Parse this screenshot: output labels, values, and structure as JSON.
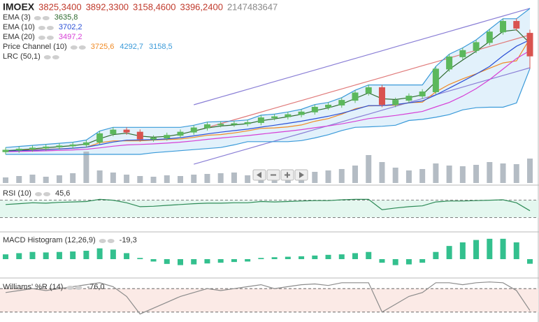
{
  "chart_data": [
    {
      "type": "candlestick",
      "title": "IMOEX",
      "open": [
        1590,
        1620,
        1640,
        1660,
        1680,
        1700,
        1720,
        1770,
        1930,
        2000,
        1960,
        1830,
        1850,
        1900,
        1960,
        2040,
        2100,
        2110,
        2120,
        2140,
        2230,
        2250,
        2290,
        2340,
        2430,
        2470,
        2560,
        2700,
        2800,
        2480,
        2560,
        2640,
        2720,
        3150,
        3380,
        3500,
        3650,
        3850,
        4050,
        3825.34
      ],
      "high": [
        1670,
        1690,
        1710,
        1730,
        1750,
        1770,
        1810,
        1980,
        2050,
        2050,
        2010,
        1900,
        1950,
        2010,
        2090,
        2150,
        2160,
        2170,
        2190,
        2280,
        2300,
        2340,
        2390,
        2480,
        2520,
        2610,
        2750,
        2850,
        2850,
        2610,
        2690,
        2770,
        3200,
        3430,
        3550,
        3700,
        3900,
        4100,
        4100,
        3892.33
      ],
      "low": [
        1540,
        1570,
        1590,
        1610,
        1630,
        1650,
        1670,
        1720,
        1880,
        1910,
        1780,
        1780,
        1800,
        1850,
        1910,
        1990,
        2050,
        2060,
        2070,
        2090,
        2180,
        2200,
        2240,
        2290,
        2380,
        2420,
        2510,
        2650,
        2430,
        2430,
        2510,
        2590,
        2670,
        3100,
        3330,
        3450,
        3600,
        3800,
        3870,
        3158.46
      ],
      "close": [
        1620,
        1640,
        1660,
        1680,
        1700,
        1720,
        1760,
        1930,
        2000,
        1960,
        1830,
        1850,
        1900,
        1960,
        2040,
        2100,
        2110,
        2120,
        2140,
        2230,
        2250,
        2290,
        2340,
        2430,
        2470,
        2560,
        2700,
        2800,
        2480,
        2560,
        2640,
        2720,
        3150,
        3380,
        3500,
        3650,
        3850,
        4050,
        3920,
        3396.24
      ],
      "value_labels": {
        "open": "3825,3400",
        "high": "3892,3300",
        "low": "3158,4600",
        "close": "3396,2400"
      },
      "volume": [
        8,
        10,
        12,
        9,
        11,
        14,
        45,
        18,
        15,
        12,
        10,
        9,
        11,
        10,
        12,
        13,
        14,
        15,
        11,
        13,
        12,
        14,
        13,
        16,
        18,
        20,
        25,
        40,
        30,
        22,
        18,
        20,
        28,
        25,
        24,
        26,
        30,
        28,
        27,
        35
      ],
      "header_volume": 2147483647,
      "up_color": "#5cb85c",
      "down_color": "#d9534f",
      "volume_color": "#b4bcc4",
      "ylim": [
        1000,
        4400
      ],
      "emas": [
        {
          "name": "EMA (3)",
          "color": "#2f6b2f",
          "last_label": "3635,8",
          "values": [
            1610,
            1625,
            1645,
            1665,
            1685,
            1705,
            1735,
            1835,
            1915,
            1940,
            1885,
            1865,
            1880,
            1920,
            1980,
            2040,
            2075,
            2095,
            2120,
            2175,
            2210,
            2250,
            2295,
            2365,
            2415,
            2490,
            2595,
            2700,
            2590,
            2575,
            2610,
            2665,
            2910,
            3145,
            3320,
            3485,
            3670,
            3860,
            3890,
            3635.8
          ]
        },
        {
          "name": "EMA (10)",
          "color": "#2a4fd6",
          "last_label": "3702,2",
          "values": [
            1600,
            1607,
            1617,
            1629,
            1642,
            1657,
            1676,
            1723,
            1774,
            1808,
            1812,
            1819,
            1832,
            1855,
            1889,
            1927,
            1960,
            1989,
            2016,
            2054,
            2090,
            2127,
            2166,
            2213,
            2260,
            2315,
            2385,
            2460,
            2462,
            2481,
            2511,
            2549,
            2660,
            2790,
            2920,
            3055,
            3200,
            3400,
            3580,
            3702.2
          ]
        },
        {
          "name": "EMA (20)",
          "color": "#d63fd6",
          "last_label": "3497,2",
          "values": [
            1590,
            1595,
            1601,
            1608,
            1616,
            1625,
            1636,
            1663,
            1694,
            1718,
            1728,
            1738,
            1752,
            1771,
            1795,
            1823,
            1849,
            1872,
            1895,
            1923,
            1950,
            1977,
            2007,
            2042,
            2077,
            2116,
            2163,
            2215,
            2244,
            2275,
            2311,
            2350,
            2436,
            2520,
            2640,
            2780,
            2950,
            3150,
            3350,
            3497.2
          ]
        }
      ],
      "price_channel": {
        "name": "Price Channel (10)",
        "fill": "#e2f1fb",
        "lines": [
          {
            "color": "#f08a24",
            "last_label": "3725,6",
            "values": [
              1605,
              1615,
              1625,
              1635,
              1645,
              1655,
              1675,
              1760,
              1795,
              1795,
              1795,
              1810,
              1820,
              1830,
              1860,
              1900,
              1915,
              1945,
              1985,
              2030,
              2040,
              2060,
              2095,
              2165,
              2215,
              2300,
              2400,
              2455,
              2460,
              2470,
              2515,
              2525,
              2720,
              2860,
              2965,
              3060,
              3165,
              3265,
              3305,
              3725.6
            ]
          },
          {
            "color": "#3a9ad9",
            "last_label": "4292,7",
            "values": [
              1670,
              1690,
              1710,
              1730,
              1750,
              1770,
              1810,
              1980,
              2050,
              2050,
              2050,
              2050,
              2050,
              2050,
              2090,
              2150,
              2160,
              2170,
              2190,
              2280,
              2300,
              2340,
              2390,
              2480,
              2520,
              2610,
              2750,
              2850,
              2850,
              2850,
              2850,
              2850,
              3200,
              3430,
              3550,
              3700,
              3900,
              4100,
              4100,
              4292.7
            ]
          },
          {
            "color": "#3a9ad9",
            "last_label": "3158,5",
            "values": [
              1540,
              1540,
              1540,
              1540,
              1540,
              1540,
              1540,
              1540,
              1540,
              1540,
              1540,
              1570,
              1590,
              1610,
              1630,
              1650,
              1670,
              1720,
              1780,
              1780,
              1780,
              1780,
              1800,
              1850,
              1910,
              1990,
              2050,
              2060,
              2070,
              2090,
              2180,
              2200,
              2240,
              2290,
              2380,
              2420,
              2430,
              2430,
              2510,
              3158.5
            ]
          }
        ]
      },
      "lrc": {
        "name": "LRC (50,1)",
        "lines": [
          {
            "color": "#8a7fd6",
            "values": [
              null,
              null,
              null,
              null,
              null,
              null,
              null,
              null,
              null,
              null,
              null,
              null,
              null,
              null,
              2476,
              2549,
              2622,
              2694,
              2767,
              2840,
              2913,
              2986,
              3058,
              3131,
              3204,
              3277,
              3350,
              3422,
              3495,
              3568,
              3641,
              3714,
              3786,
              3859,
              3932,
              4005,
              4078,
              4150,
              4223,
              4296
            ]
          },
          {
            "color": "#e07a7a",
            "values": [
              null,
              null,
              null,
              null,
              null,
              null,
              null,
              null,
              null,
              null,
              null,
              null,
              null,
              null,
              1974,
              2047,
              2120,
              2192,
              2265,
              2338,
              2411,
              2484,
              2556,
              2629,
              2702,
              2775,
              2848,
              2920,
              2993,
              3066,
              3139,
              3212,
              3284,
              3357,
              3430,
              3503,
              3576,
              3648,
              3721,
              3794
            ]
          },
          {
            "color": "#8a7fd6",
            "values": [
              null,
              null,
              null,
              null,
              null,
              null,
              null,
              null,
              null,
              null,
              null,
              null,
              null,
              null,
              1354,
              1427,
              1500,
              1572,
              1645,
              1718,
              1791,
              1864,
              1936,
              2009,
              2082,
              2155,
              2228,
              2300,
              2373,
              2446,
              2519,
              2592,
              2664,
              2737,
              2810,
              2883,
              2956,
              3028,
              3101,
              3174
            ]
          }
        ]
      }
    },
    {
      "type": "line",
      "title": "RSI (10)",
      "last_label": "45,6",
      "color": "#2e8b57",
      "values": [
        60,
        62,
        64,
        63,
        65,
        66,
        67,
        72,
        70,
        64,
        55,
        56,
        58,
        60,
        62,
        63,
        63,
        64,
        64,
        67,
        66,
        67,
        68,
        69,
        69,
        71,
        72,
        72,
        48,
        52,
        55,
        57,
        66,
        68,
        68,
        69,
        70,
        71,
        64,
        45.6
      ],
      "ylim": [
        0,
        100
      ],
      "levels": [
        70,
        30
      ],
      "band_color": "#e4f7ef"
    },
    {
      "type": "bar",
      "title": "MACD Histogram (12,26,9)",
      "last_label": "-19,3",
      "color": "#33c08e",
      "values": [
        20,
        25,
        30,
        28,
        30,
        32,
        35,
        45,
        40,
        25,
        5,
        -10,
        -20,
        -25,
        -22,
        -18,
        -15,
        -12,
        -10,
        5,
        8,
        10,
        12,
        15,
        18,
        20,
        25,
        30,
        -15,
        -25,
        -22,
        -15,
        30,
        55,
        70,
        80,
        85,
        85,
        70,
        -19.3
      ],
      "ylim": [
        -70,
        105
      ]
    },
    {
      "type": "line",
      "title": "Williams' %R (14)",
      "last_label": "-76,0",
      "color": "#8c8c8c",
      "values": [
        -30,
        -25,
        -20,
        -25,
        -20,
        -15,
        -10,
        -5,
        -15,
        -40,
        -85,
        -70,
        -55,
        -40,
        -30,
        -20,
        -25,
        -20,
        -15,
        -10,
        -20,
        -15,
        -10,
        -8,
        -12,
        -5,
        -5,
        -5,
        -80,
        -60,
        -40,
        -30,
        -5,
        -5,
        -10,
        -5,
        -3,
        -5,
        -25,
        -76
      ],
      "ylim": [
        -100,
        0
      ],
      "levels": [
        -20,
        -80
      ],
      "band_color": "#fbeae6"
    }
  ]
}
